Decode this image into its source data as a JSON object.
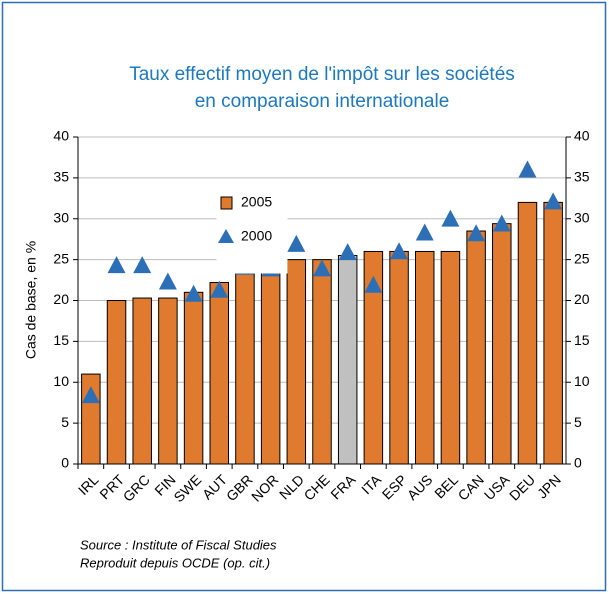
{
  "chart_data": {
    "type": "bar",
    "title": [
      "Taux effectif moyen de l'impôt sur les sociétés",
      "en comparaison internationale"
    ],
    "ylabel": "Cas de base, en %",
    "source": [
      "Source : Institute of Fiscal Studies",
      "Reproduit depuis OCDE (op. cit.)"
    ],
    "categories": [
      "IRL",
      "PRT",
      "GRC",
      "FIN",
      "SWE",
      "AUT",
      "GBR",
      "NOR",
      "NLD",
      "CHE",
      "FRA",
      "ITA",
      "ESP",
      "AUS",
      "BEL",
      "CAN",
      "USA",
      "DEU",
      "JPN"
    ],
    "series": [
      {
        "name": "2005",
        "type": "bar",
        "color": "#e07a2e",
        "bar_colors": [
          "#e07a2e",
          "#e07a2e",
          "#e07a2e",
          "#e07a2e",
          "#e07a2e",
          "#e07a2e",
          "#e07a2e",
          "#e07a2e",
          "#e07a2e",
          "#e07a2e",
          "#c0c0c0",
          "#e07a2e",
          "#e07a2e",
          "#e07a2e",
          "#e07a2e",
          "#e07a2e",
          "#e07a2e",
          "#e07a2e",
          "#e07a2e"
        ],
        "values": [
          11,
          20,
          20.3,
          20.3,
          21,
          22.2,
          23.8,
          24,
          25,
          25,
          25.5,
          26,
          26,
          26,
          26,
          28.5,
          29.4,
          32,
          32
        ]
      },
      {
        "name": "2000",
        "type": "marker",
        "color": "#2d6fb7",
        "values": [
          8.3,
          24.2,
          24.2,
          22.2,
          20.7,
          21.2,
          24,
          23.8,
          26.8,
          23.8,
          25.8,
          21.8,
          25.9,
          28.2,
          29.9,
          28.1,
          29.3,
          35.9,
          32
        ]
      }
    ],
    "ylim": [
      0,
      40
    ],
    "yticks": [
      0,
      5,
      10,
      15,
      20,
      25,
      30,
      35,
      40
    ],
    "y2lim": [
      0,
      40
    ],
    "y2ticks": [
      0,
      5,
      10,
      15,
      20,
      25,
      30,
      35,
      40
    ],
    "grid": true,
    "legend": "upper left"
  }
}
